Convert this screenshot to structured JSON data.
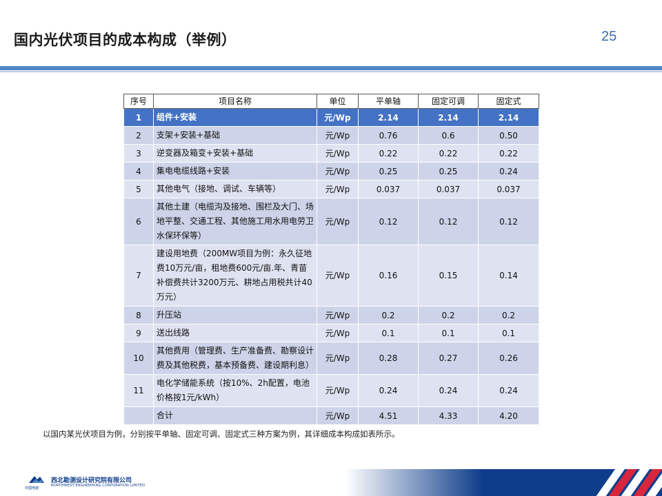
{
  "title": "国内光伏项目的成本构成（举例）",
  "page_number": "25",
  "table": {
    "headers": [
      "序号",
      "项目名称",
      "单位",
      "平单轴",
      "固定可调",
      "固定式"
    ],
    "rows": [
      {
        "no": "1",
        "name": "组件+安装",
        "unit": "元/Wp",
        "a": "2.14",
        "b": "2.14",
        "c": "2.14"
      },
      {
        "no": "2",
        "name": "支架+安装+基础",
        "unit": "元/Wp",
        "a": "0.76",
        "b": "0.6",
        "c": "0.50"
      },
      {
        "no": "3",
        "name": "逆变器及箱变+安装+基础",
        "unit": "元/Wp",
        "a": "0.22",
        "b": "0.22",
        "c": "0.22"
      },
      {
        "no": "4",
        "name": "集电电缆线路+安装",
        "unit": "元/Wp",
        "a": "0.25",
        "b": "0.25",
        "c": "0.24"
      },
      {
        "no": "5",
        "name": "其他电气（接地、调试、车辆等）",
        "unit": "元/Wp",
        "a": "0.037",
        "b": "0.037",
        "c": "0.037"
      },
      {
        "no": "6",
        "name": "其他土建（电缆沟及接地、围栏及大门、场地平整、交通工程、其他施工用水用电劳卫水保环保等）",
        "unit": "元/Wp",
        "a": "0.12",
        "b": "0.12",
        "c": "0.12"
      },
      {
        "no": "7",
        "name": "建设用地费（200MW项目为例：永久征地费10万元/亩，租地费600元/亩.年、青苗补偿费共计3200万元、耕地占用税共计40万元）",
        "unit": "元/Wp",
        "a": "0.16",
        "b": "0.15",
        "c": "0.14"
      },
      {
        "no": "8",
        "name": "升压站",
        "unit": "元/Wp",
        "a": "0.2",
        "b": "0.2",
        "c": "0.2"
      },
      {
        "no": "9",
        "name": "送出线路",
        "unit": "元/Wp",
        "a": "0.1",
        "b": "0.1",
        "c": "0.1"
      },
      {
        "no": "10",
        "name": "其他费用（管理费、生产准备费、勘察设计费及其他税费，基本预备费、建设期利息）",
        "unit": "元/Wp",
        "a": "0.28",
        "b": "0.27",
        "c": "0.26"
      },
      {
        "no": "11",
        "name": "电化学储能系统（按10%、2h配置，电池价格按1元/kWh）",
        "unit": "元/Wp",
        "a": "0.24",
        "b": "0.24",
        "c": "0.24"
      },
      {
        "no": "",
        "name": "合计",
        "unit": "元/Wp",
        "a": "4.51",
        "b": "4.33",
        "c": "4.20"
      }
    ]
  },
  "caption": "以国内某光伏项目为例，分别按平单轴、固定可调、固定式三种方案为例，其详细成本构成如表所示。",
  "footer": {
    "logo_text": "中国电建",
    "org_name_cn": "西北勘测设计研究院有限公司",
    "org_name_en": "NORTHWEST ENGINEERING CORPORATION LIMITED"
  },
  "colors": {
    "accent_blue": "#4472c4",
    "row_fill": "#dfe3f1",
    "row_fill_alt": "#cdd3e8",
    "title_bar": "#4f86c6",
    "footer_navy": "#0e3d8a"
  }
}
